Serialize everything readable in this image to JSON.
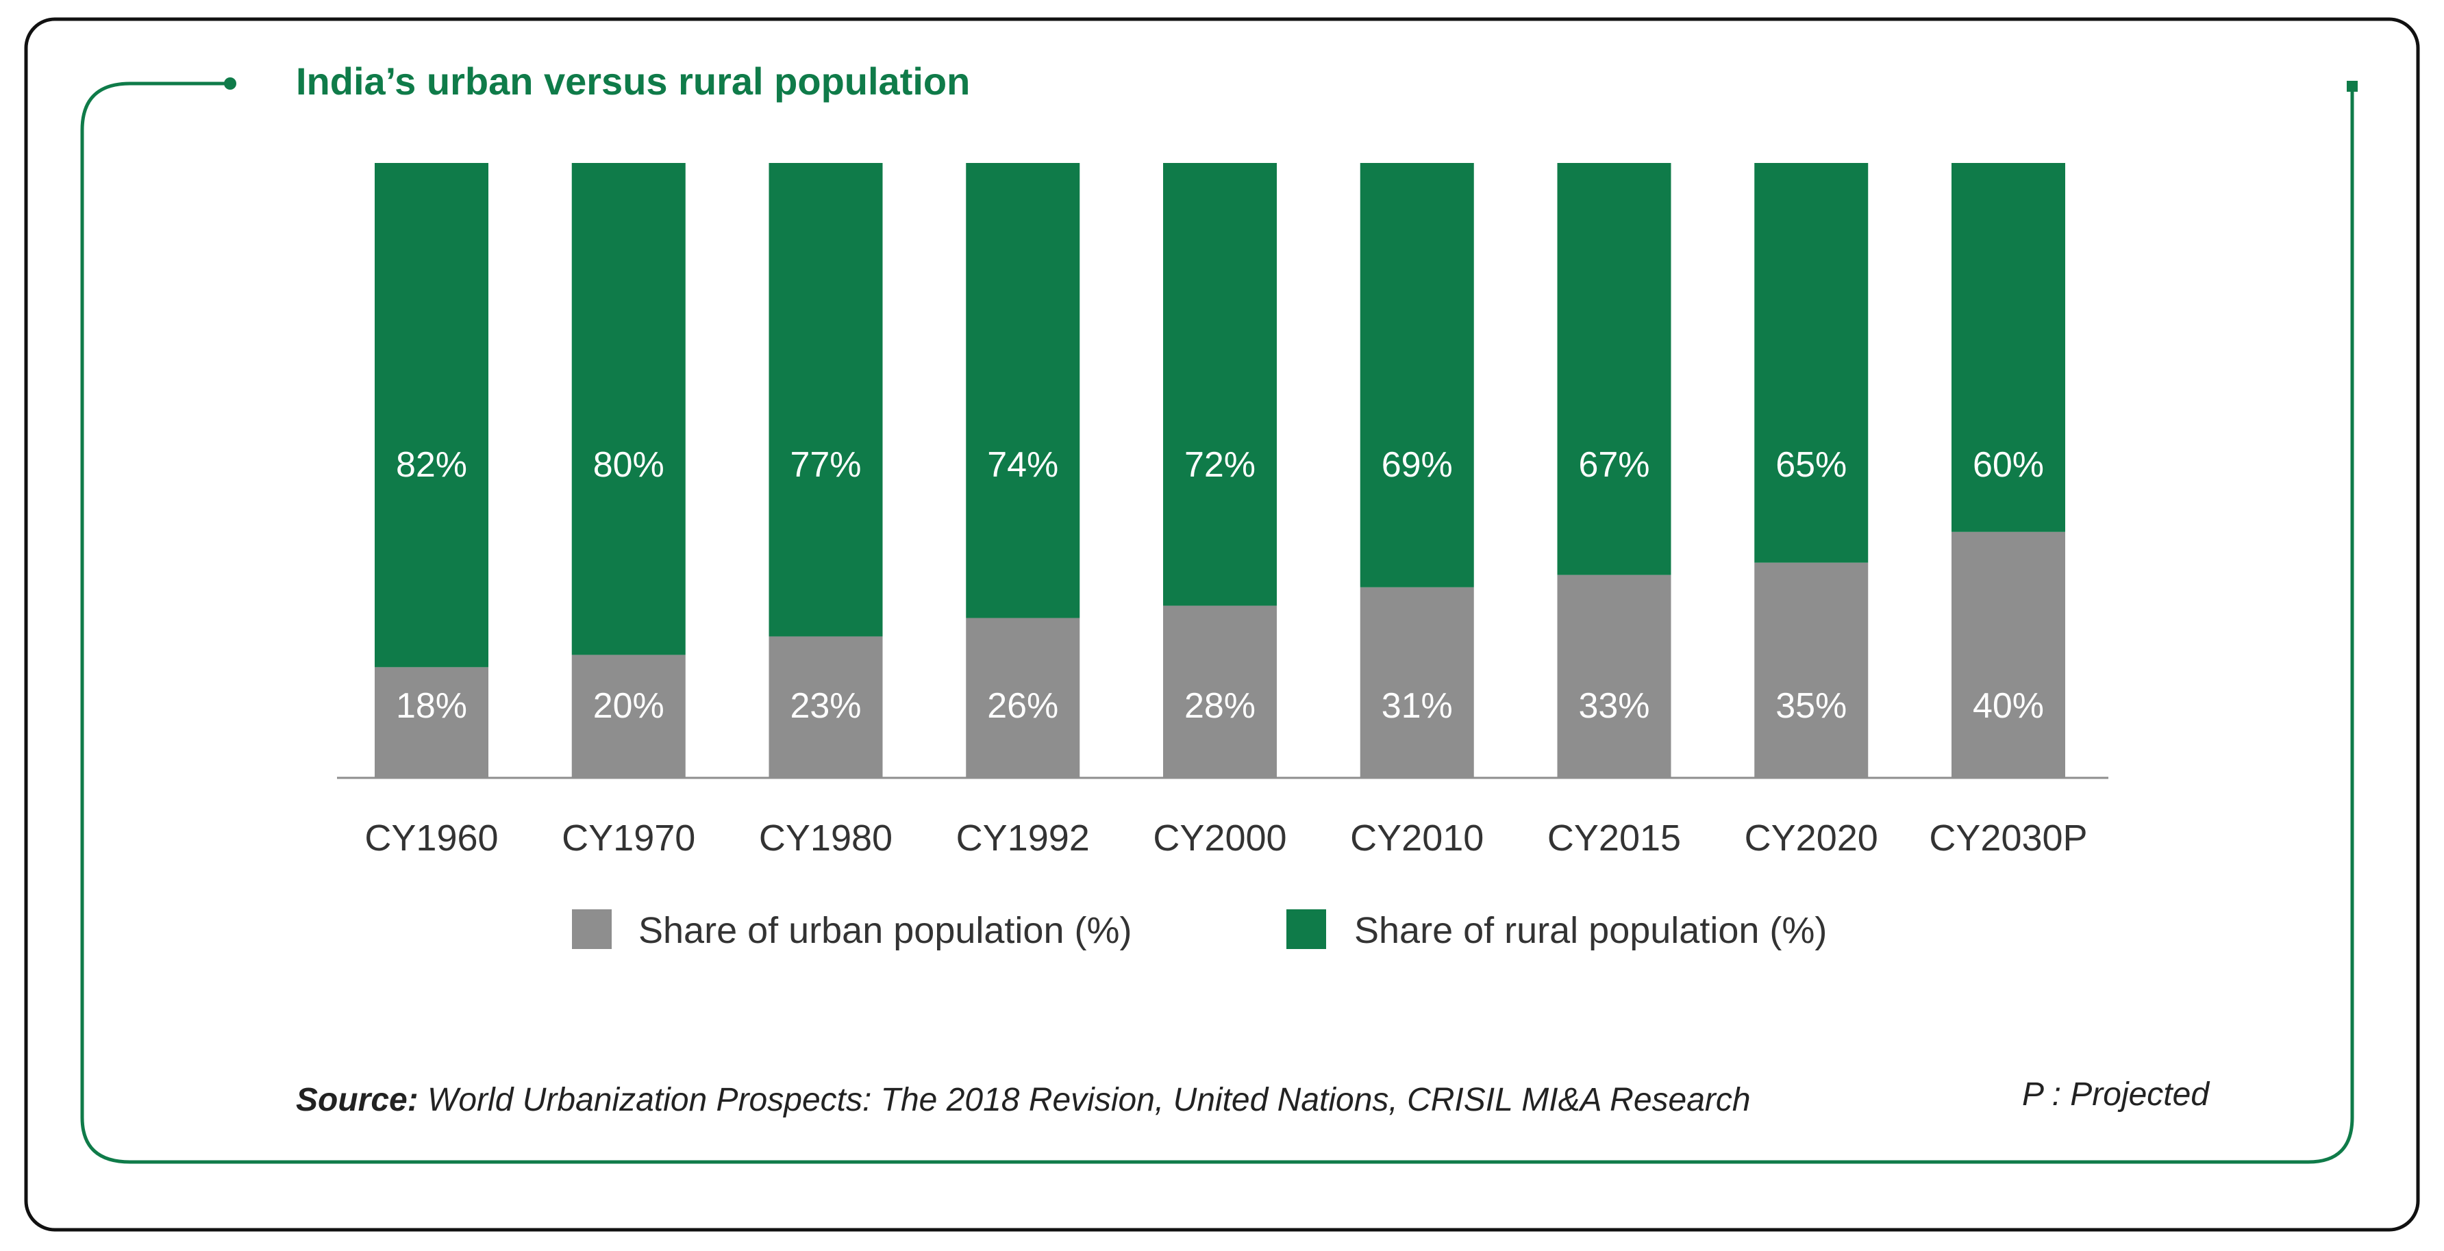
{
  "colors": {
    "accent": "#0f7b49",
    "rural": "#0f7b49",
    "urban": "#8e8e8e",
    "axis": "#8e8e8e",
    "text": "#222222",
    "label_on_bar": "#ffffff",
    "outer_border": "#111111"
  },
  "chart_data": {
    "type": "bar",
    "stacked": true,
    "title": "India’s urban versus rural population",
    "categories": [
      "CY1960",
      "CY1970",
      "CY1980",
      "CY1992",
      "CY2000",
      "CY2010",
      "CY2015",
      "CY2020",
      "CY2030P"
    ],
    "series": [
      {
        "name": "Share of urban population (%)",
        "values": [
          18,
          20,
          23,
          26,
          28,
          31,
          33,
          35,
          40
        ],
        "labels": [
          "18%",
          "20%",
          "23%",
          "26%",
          "28%",
          "31%",
          "33%",
          "35%",
          "40%"
        ]
      },
      {
        "name": "Share of rural population (%)",
        "values": [
          82,
          80,
          77,
          74,
          72,
          69,
          67,
          65,
          60
        ],
        "labels": [
          "82%",
          "80%",
          "77%",
          "74%",
          "72%",
          "69%",
          "67%",
          "65%",
          "60%"
        ]
      }
    ],
    "xlabel": "",
    "ylabel": "",
    "ylim": [
      0,
      100
    ],
    "grid": false,
    "legend_position": "bottom"
  },
  "footer": {
    "source_label": "Source:",
    "source_text": " World Urbanization Prospects: The 2018 Revision, United Nations, CRISIL MI&A Research",
    "projected_note": "P : Projected"
  }
}
